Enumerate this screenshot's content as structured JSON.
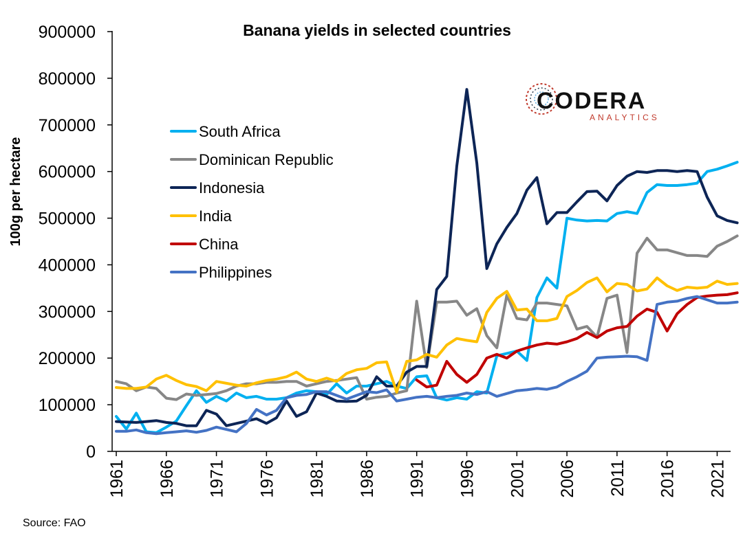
{
  "chart_data": {
    "type": "line",
    "title": "Banana yields in selected countries",
    "ylabel": "100g per hectare",
    "xlabel": "",
    "ylim": [
      0,
      900000
    ],
    "yticks": [
      0,
      100000,
      200000,
      300000,
      400000,
      500000,
      600000,
      700000,
      800000,
      900000
    ],
    "xlim": [
      1961,
      2022
    ],
    "xticks": [
      1961,
      1966,
      1971,
      1976,
      1981,
      1986,
      1991,
      1996,
      2001,
      2006,
      2011,
      2016,
      2021
    ],
    "grid": false,
    "legend_position": "upper-left",
    "source": "Source: FAO",
    "logo": {
      "main": "CODERA",
      "sub": "ANALYTICS"
    },
    "series": [
      {
        "name": "South Africa",
        "color": "#00B0F0",
        "start": 1961,
        "values": [
          75000,
          48000,
          82000,
          42000,
          40000,
          52000,
          65000,
          98000,
          130000,
          105000,
          118000,
          108000,
          125000,
          115000,
          118000,
          112000,
          112000,
          115000,
          125000,
          130000,
          128000,
          122000,
          145000,
          125000,
          140000,
          140000,
          145000,
          150000,
          140000,
          135000,
          160000,
          162000,
          115000,
          110000,
          115000,
          112000,
          128000,
          125000,
          205000,
          210000,
          215000,
          195000,
          330000,
          372000,
          350000,
          500000,
          496000,
          494000,
          495000,
          494000,
          510000,
          514000,
          510000,
          555000,
          572000,
          570000,
          570000,
          572000,
          575000,
          600000,
          605000,
          612000,
          620000
        ]
      },
      {
        "name": "Dominican Republic",
        "color": "#878787",
        "start": 1961,
        "values": [
          150000,
          145000,
          130000,
          138000,
          135000,
          114000,
          111000,
          123000,
          120000,
          122000,
          124000,
          130000,
          140000,
          145000,
          145000,
          148000,
          148000,
          150000,
          150000,
          140000,
          145000,
          150000,
          152000,
          155000,
          158000,
          112000,
          116000,
          118000,
          125000,
          130000,
          322000,
          180000,
          320000,
          320000,
          322000,
          292000,
          306000,
          248000,
          222000,
          335000,
          285000,
          282000,
          318000,
          318000,
          315000,
          312000,
          262000,
          268000,
          245000,
          328000,
          335000,
          212000,
          425000,
          457000,
          432000,
          432000,
          426000,
          420000,
          420000,
          418000,
          440000,
          450000,
          462000
        ]
      },
      {
        "name": "Indonesia",
        "color": "#0D2556",
        "start": 1961,
        "values": [
          64000,
          63000,
          62000,
          64000,
          66000,
          62000,
          60000,
          55000,
          55000,
          88000,
          80000,
          55000,
          60000,
          65000,
          70000,
          60000,
          72000,
          108000,
          75000,
          85000,
          125000,
          118000,
          108000,
          107000,
          108000,
          120000,
          160000,
          140000,
          140000,
          170000,
          182000,
          182000,
          347000,
          375000,
          612000,
          776000,
          618000,
          392000,
          445000,
          480000,
          510000,
          560000,
          587000,
          488000,
          512000,
          512000,
          535000,
          557000,
          558000,
          537000,
          570000,
          590000,
          600000,
          598000,
          602000,
          602000,
          600000,
          602000,
          600000,
          545000,
          505000,
          495000,
          490000
        ]
      },
      {
        "name": "India",
        "color": "#FFC000",
        "start": 1961,
        "values": [
          137000,
          135000,
          135000,
          138000,
          155000,
          163000,
          152000,
          143000,
          139000,
          130000,
          150000,
          146000,
          142000,
          140000,
          147000,
          152000,
          155000,
          160000,
          170000,
          155000,
          150000,
          157000,
          150000,
          167000,
          175000,
          178000,
          190000,
          192000,
          127000,
          193000,
          196000,
          208000,
          202000,
          228000,
          242000,
          238000,
          235000,
          298000,
          328000,
          343000,
          303000,
          305000,
          280000,
          280000,
          285000,
          332000,
          345000,
          362000,
          372000,
          342000,
          360000,
          358000,
          344000,
          348000,
          372000,
          355000,
          345000,
          352000,
          350000,
          352000,
          365000,
          358000,
          360000
        ]
      },
      {
        "name": "China",
        "color": "#C00000",
        "start": 1991,
        "values": [
          153000,
          138000,
          142000,
          193000,
          165000,
          148000,
          165000,
          200000,
          208000,
          200000,
          215000,
          222000,
          228000,
          232000,
          230000,
          235000,
          242000,
          255000,
          244000,
          258000,
          265000,
          268000,
          290000,
          305000,
          298000,
          258000,
          295000,
          315000,
          330000,
          333000,
          335000,
          336000,
          340000
        ]
      },
      {
        "name": "Philippines",
        "color": "#4472C4",
        "start": 1961,
        "values": [
          43000,
          43000,
          46000,
          40000,
          38000,
          40000,
          42000,
          44000,
          41000,
          45000,
          52000,
          47000,
          42000,
          60000,
          90000,
          78000,
          88000,
          115000,
          120000,
          122000,
          128000,
          128000,
          120000,
          112000,
          120000,
          128000,
          126000,
          132000,
          108000,
          112000,
          116000,
          118000,
          115000,
          118000,
          120000,
          125000,
          122000,
          128000,
          118000,
          124000,
          130000,
          132000,
          135000,
          133000,
          138000,
          150000,
          160000,
          172000,
          200000,
          202000,
          203000,
          204000,
          203000,
          195000,
          315000,
          320000,
          322000,
          328000,
          332000,
          325000,
          318000,
          318000,
          320000
        ]
      }
    ]
  }
}
